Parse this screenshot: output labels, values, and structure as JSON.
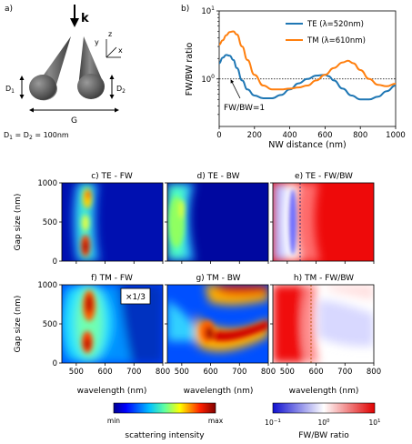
{
  "panel_a": {
    "label": "a)",
    "k_symbol": "k",
    "axis_y": "y",
    "axis_z": "z",
    "axis_x": "x",
    "d1": "D",
    "d1_sub": "1",
    "d2": "D",
    "d2_sub": "2",
    "gap": "G",
    "caption": "D",
    "caption_sub1": "1",
    "caption_eq": " = D",
    "caption_sub2": "2",
    "caption_val": " = 100nm"
  },
  "panel_b": {
    "label": "b)",
    "annotation": "FW/BW=1"
  },
  "map_labels": {
    "c": "c) TE - FW",
    "d": "d) TE - BW",
    "e": "e) TE - FW/BW",
    "f": "f) TM - FW",
    "g": "g) TM - BW",
    "h": "h) TM - FW/BW",
    "scale_note": "×1/3",
    "xlabel": "wavelength (nm)",
    "ylabel": "Gap size (nm)",
    "xticks": [
      "500",
      "600",
      "700",
      "800"
    ],
    "yticks": [
      "0",
      "500",
      "1000"
    ]
  },
  "colorbars": {
    "intensity_min": "min",
    "intensity_max": "max",
    "intensity_label": "scattering intensity",
    "ratio_low_base": "10",
    "ratio_low_exp": "−1",
    "ratio_mid_base": "10",
    "ratio_mid_exp": "0",
    "ratio_high_base": "10",
    "ratio_high_exp": "1",
    "ratio_label": "FW/BW ratio",
    "jet_colors": [
      "#00008f",
      "#0000ff",
      "#0080ff",
      "#00ffff",
      "#80ff80",
      "#ffff00",
      "#ff8000",
      "#ff0000",
      "#800000"
    ],
    "bwr_colors": [
      "#1010d0",
      "#ffffff",
      "#e00000"
    ]
  },
  "chart_data": {
    "type": "line",
    "xlabel": "NW distance (nm)",
    "ylabel": "FW/BW ratio",
    "xlim": [
      0,
      1000
    ],
    "ylim": [
      0.2,
      10
    ],
    "yscale": "log",
    "xticks": [
      "0",
      "200",
      "400",
      "600",
      "800",
      "1000"
    ],
    "yticks": [
      {
        "base": "10",
        "exp": "0"
      },
      {
        "base": "10",
        "exp": "1"
      }
    ],
    "legend_position": "top-right",
    "reference_line": 1.0,
    "series": [
      {
        "name": "TE (λ=520nm)",
        "color": "#1f77b4",
        "x": [
          0,
          20,
          40,
          60,
          80,
          100,
          130,
          160,
          200,
          250,
          300,
          350,
          400,
          450,
          500,
          550,
          600,
          620,
          650,
          700,
          750,
          800,
          850,
          900,
          950,
          1000
        ],
        "y": [
          1.7,
          2.05,
          2.25,
          2.2,
          1.9,
          1.45,
          0.95,
          0.7,
          0.57,
          0.52,
          0.52,
          0.58,
          0.7,
          0.86,
          1.0,
          1.12,
          1.15,
          1.1,
          0.95,
          0.72,
          0.57,
          0.5,
          0.5,
          0.55,
          0.66,
          0.8
        ]
      },
      {
        "name": "TM (λ=610nm)",
        "color": "#ff7f0e",
        "x": [
          0,
          20,
          40,
          60,
          80,
          100,
          130,
          160,
          200,
          250,
          300,
          350,
          400,
          450,
          500,
          550,
          600,
          650,
          700,
          730,
          760,
          800,
          850,
          900,
          950,
          1000
        ],
        "y": [
          3.2,
          3.7,
          4.4,
          4.9,
          5.0,
          4.5,
          3.0,
          1.9,
          1.15,
          0.8,
          0.7,
          0.7,
          0.72,
          0.75,
          0.8,
          0.95,
          1.15,
          1.45,
          1.75,
          1.85,
          1.7,
          1.35,
          1.0,
          0.82,
          0.78,
          0.85
        ]
      }
    ]
  }
}
